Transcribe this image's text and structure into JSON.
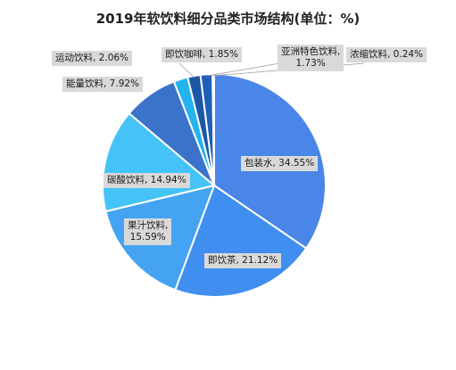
{
  "chart_data": {
    "type": "pie",
    "title": "2019年软饮料细分品类市场结构(单位：%)",
    "slices": [
      {
        "name": "包装水",
        "value": 34.55,
        "label": "包装水, 34.55%",
        "color": "#4a86e8"
      },
      {
        "name": "即饮茶",
        "value": 21.12,
        "label": "即饮茶, 21.12%",
        "color": "#3f8ef0"
      },
      {
        "name": "果汁饮料",
        "value": 15.59,
        "label": "果汁饮料, 15.59%",
        "color": "#44a3f3"
      },
      {
        "name": "碳酸饮料",
        "value": 14.94,
        "label": "碳酸饮料, 14.94%",
        "color": "#45c3f6"
      },
      {
        "name": "能量饮料",
        "value": 7.92,
        "label": "能量饮料, 7.92%",
        "color": "#3a73c9"
      },
      {
        "name": "运动饮料",
        "value": 2.06,
        "label": "运动饮料, 2.06%",
        "color": "#23b4ee"
      },
      {
        "name": "即饮咖啡",
        "value": 1.85,
        "label": "即饮咖啡, 1.85%",
        "color": "#1b57a7"
      },
      {
        "name": "亚洲特色饮料",
        "value": 1.73,
        "label": "亚洲特色饮料, 1.73%",
        "color": "#1e5fb8"
      },
      {
        "name": "浓缩饮料",
        "value": 0.24,
        "label": "浓缩饮料, 0.24%",
        "color": "#2e6fd0"
      }
    ]
  }
}
